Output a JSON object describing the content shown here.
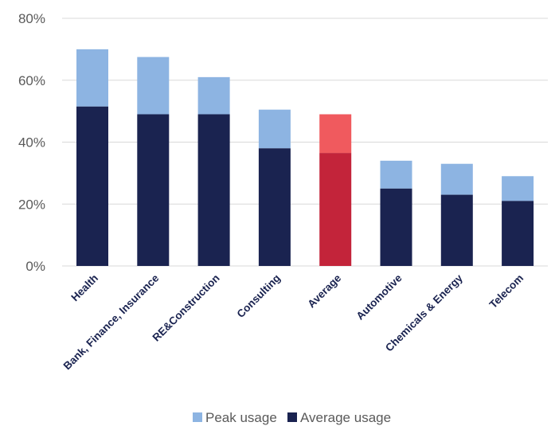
{
  "chart_data": {
    "type": "bar",
    "stacked": true,
    "title": "",
    "xlabel": "",
    "ylabel": "",
    "ylim": [
      0,
      80
    ],
    "y_ticks": [
      "0%",
      "20%",
      "40%",
      "60%",
      "80%"
    ],
    "y_tick_values": [
      0,
      20,
      40,
      60,
      80
    ],
    "grid": true,
    "legend_position": "bottom-center",
    "categories": [
      "Health",
      "Bank, Finance, Insurance",
      "RE&Construction",
      "Consulting",
      "Average",
      "Automotive",
      "Chemicals & Energy",
      "Telecom"
    ],
    "series": [
      {
        "name": "Average usage",
        "values": [
          51.5,
          49,
          49,
          38,
          36.5,
          25,
          23,
          21
        ]
      },
      {
        "name": "Peak usage",
        "values": [
          18.5,
          18.5,
          12,
          12.5,
          12.5,
          9,
          10,
          8
        ]
      }
    ],
    "peak_totals": [
      70,
      67.5,
      61,
      50.5,
      49,
      34,
      33,
      29
    ],
    "colors": {
      "average": "#1a2350",
      "peak": "#8db4e2",
      "highlight_average": "#c3243a",
      "highlight_peak": "#f05a5e"
    },
    "highlight_category": "Average",
    "legend": [
      {
        "label": "Peak usage",
        "color": "#8db4e2"
      },
      {
        "label": "Average usage",
        "color": "#1a2350"
      }
    ]
  }
}
